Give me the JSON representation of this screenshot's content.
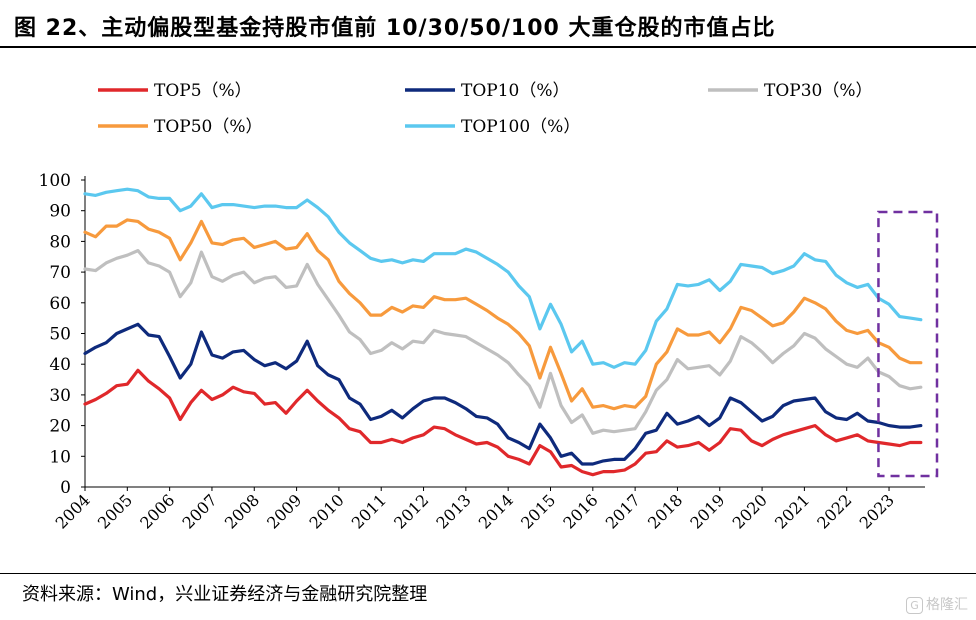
{
  "figure": {
    "title": "图 22、主动偏股型基金持股市值前 10/30/50/100 大重仓股的市值占比",
    "source": "资料来源：Wind，兴业证券经济与金融研究院整理",
    "watermark": "格隆汇"
  },
  "chart_data": {
    "type": "line",
    "title": "图 22、主动偏股型基金持股市值前 10/30/50/100 大重仓股的市值占比",
    "ylim": [
      0,
      100
    ],
    "yticks": [
      0,
      10,
      20,
      30,
      40,
      50,
      60,
      70,
      80,
      90,
      100
    ],
    "xlim": [
      2004,
      2023.85
    ],
    "xticks": [
      "2004",
      "2005",
      "2006",
      "2007",
      "2008",
      "2009",
      "2010",
      "2011",
      "2012",
      "2013",
      "2014",
      "2015",
      "2016",
      "2017",
      "2018",
      "2019",
      "2020",
      "2021",
      "2022",
      "2023"
    ],
    "grid": false,
    "legend_position": "top",
    "highlight_range": [
      2022.75,
      2023.85
    ],
    "x": [
      2004,
      2004.25,
      2004.5,
      2004.75,
      2005,
      2005.25,
      2005.5,
      2005.75,
      2006,
      2006.25,
      2006.5,
      2006.75,
      2007,
      2007.25,
      2007.5,
      2007.75,
      2008,
      2008.25,
      2008.5,
      2008.75,
      2009,
      2009.25,
      2009.5,
      2009.75,
      2010,
      2010.25,
      2010.5,
      2010.75,
      2011,
      2011.25,
      2011.5,
      2011.75,
      2012,
      2012.25,
      2012.5,
      2012.75,
      2013,
      2013.25,
      2013.5,
      2013.75,
      2014,
      2014.25,
      2014.5,
      2014.75,
      2015,
      2015.25,
      2015.5,
      2015.75,
      2016,
      2016.25,
      2016.5,
      2016.75,
      2017,
      2017.25,
      2017.5,
      2017.75,
      2018,
      2018.25,
      2018.5,
      2018.75,
      2019,
      2019.25,
      2019.5,
      2019.75,
      2020,
      2020.25,
      2020.5,
      2020.75,
      2021,
      2021.25,
      2021.5,
      2021.75,
      2022,
      2022.25,
      2022.5,
      2022.75,
      2023,
      2023.25,
      2023.5,
      2023.75
    ],
    "series": [
      {
        "name": "TOP5（%）",
        "color": "#e0282b",
        "values": [
          27,
          28.5,
          30.5,
          33,
          33.5,
          38,
          34.5,
          32,
          29,
          22,
          27.5,
          31.5,
          28.5,
          30,
          32.5,
          31,
          30.5,
          27,
          27.5,
          24,
          28,
          31.5,
          28,
          25,
          22.5,
          19,
          18,
          14.5,
          14.5,
          15.5,
          14.5,
          16,
          17,
          19.5,
          19,
          17,
          15.5,
          14,
          14.5,
          13,
          10,
          9,
          7.5,
          13.5,
          11.5,
          6.5,
          7,
          5,
          4,
          5,
          5,
          5.5,
          7.5,
          11,
          11.5,
          15,
          13,
          13.5,
          14.5,
          12,
          14.5,
          19,
          18.5,
          15,
          13.5,
          15.5,
          17,
          18,
          19,
          20,
          17,
          15,
          16,
          17,
          15,
          14.5,
          14,
          13.5,
          14.5,
          14.5
        ]
      },
      {
        "name": "TOP10（%）",
        "color": "#0e2a7c",
        "values": [
          43.5,
          45.5,
          47,
          50,
          51.5,
          53,
          49.5,
          49,
          42.5,
          35.5,
          40,
          50.5,
          43,
          42,
          44,
          44.5,
          41.5,
          39.5,
          40.5,
          38.5,
          41,
          47.5,
          39.5,
          36.5,
          35,
          29,
          27,
          22,
          23,
          25,
          22.5,
          25.5,
          28,
          29,
          29,
          27.5,
          25.5,
          23,
          22.5,
          20.5,
          16,
          14.5,
          12.5,
          20.5,
          16,
          10,
          11,
          7.5,
          7.5,
          8.5,
          9,
          9,
          12.5,
          17.5,
          18.5,
          24,
          20.5,
          21.5,
          23,
          20,
          22.5,
          29,
          27.5,
          24.5,
          21.5,
          23,
          26.5,
          28,
          28.5,
          29,
          24.5,
          22.5,
          22,
          24,
          21.5,
          21,
          20,
          19.5,
          19.5,
          20
        ]
      },
      {
        "name": "TOP30（%）",
        "color": "#bfbfbf",
        "values": [
          71,
          70.5,
          73,
          74.5,
          75.5,
          77,
          73,
          72,
          70,
          62,
          66.5,
          76.5,
          68.5,
          67,
          69,
          70,
          66.5,
          68,
          68.5,
          65,
          65.5,
          72.5,
          66,
          61,
          56,
          50.5,
          48,
          43.5,
          44.5,
          47,
          45,
          47.5,
          47,
          51,
          50,
          49.5,
          49,
          47,
          45,
          43,
          40.5,
          36.5,
          33,
          26,
          37,
          26.5,
          21,
          23.5,
          17.5,
          18.5,
          18,
          18.5,
          19,
          24.5,
          31.5,
          35,
          41.5,
          38.5,
          39,
          39.5,
          36.5,
          41,
          49,
          47,
          44,
          40.5,
          43.5,
          46,
          50,
          48.5,
          45,
          42.5,
          40,
          39,
          42,
          37.5,
          36,
          33,
          32,
          32.5
        ]
      },
      {
        "name": "TOP50（%）",
        "color": "#f79a3d",
        "values": [
          83,
          81.5,
          85,
          85,
          87,
          86.5,
          84,
          83,
          81,
          74,
          79.5,
          86.5,
          79.5,
          79,
          80.5,
          81,
          78,
          79,
          80,
          77.5,
          78,
          82.5,
          77,
          74,
          67,
          63,
          60,
          56,
          56,
          58.5,
          57,
          59,
          58.5,
          62,
          61,
          61,
          61.5,
          59.5,
          57.5,
          55,
          53,
          50,
          46,
          35.5,
          45.5,
          37,
          28,
          32,
          26,
          26.5,
          25.5,
          26.5,
          26,
          29.5,
          40,
          44,
          51.5,
          49.5,
          49.5,
          50.5,
          47,
          51.5,
          58.5,
          57.5,
          55,
          52.5,
          53.5,
          57,
          61.5,
          60,
          58,
          54,
          51,
          50,
          51,
          47,
          45.5,
          42,
          40.5,
          40.5
        ]
      },
      {
        "name": "TOP100（%）",
        "color": "#5bc8ef",
        "values": [
          95.5,
          95,
          96,
          96.5,
          97,
          96.5,
          94.5,
          94,
          94,
          90,
          91.5,
          95.5,
          91,
          92,
          92,
          91.5,
          91,
          91.5,
          91.5,
          91,
          91,
          93.5,
          91,
          88,
          83,
          79.5,
          77,
          74.5,
          73.5,
          74,
          73,
          74,
          73.5,
          76,
          76,
          76,
          77.5,
          76.5,
          74.5,
          72.5,
          70,
          65.5,
          62,
          51.5,
          59.5,
          53,
          44,
          47.5,
          40,
          40.5,
          39,
          40.5,
          40,
          44.5,
          54,
          58,
          66,
          65.5,
          66,
          67.5,
          64,
          67,
          72.5,
          72,
          71.5,
          69.5,
          70.5,
          72,
          76,
          74,
          73.5,
          69,
          66.5,
          65,
          66,
          61.5,
          59.5,
          55.5,
          55,
          54.5
        ]
      }
    ]
  }
}
